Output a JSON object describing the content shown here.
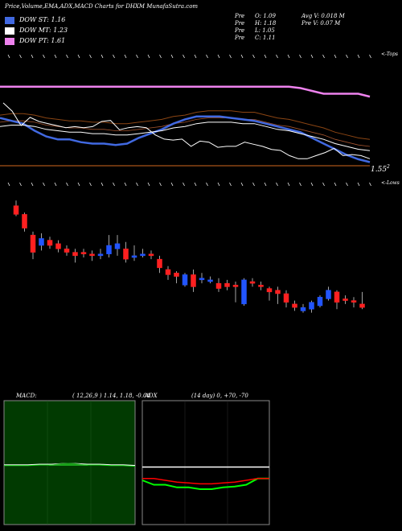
{
  "header": {
    "title": "Price,Volume,EMA,ADX,MACD Charts for DHXM MunafaSutra.com",
    "stats": [
      {
        "label": "Pre",
        "value": "O: 1.09"
      },
      {
        "label": "Pre",
        "value": "H: 1.18"
      },
      {
        "label": "Pre",
        "value": "L: 1.05"
      },
      {
        "label": "Pre",
        "value": "C: 1.11"
      }
    ],
    "avg_volume": "Avg V: 0.018 M",
    "pre_volume": "Pre  V: 0.07 M"
  },
  "legend": [
    {
      "label": "DOW ST: 1.16",
      "color": "#4169e1"
    },
    {
      "label": "DOW MT: 1.23",
      "color": "#ffffff"
    },
    {
      "label": "DOW PT: 1.61",
      "color": "#ee82ee"
    }
  ],
  "labels": {
    "tops": "<-Tops",
    "lows": "<-Lows",
    "price_label": "1.55",
    "price_sup": "2"
  },
  "macd": {
    "title": "MACD:",
    "params": "( 12,26,9 ) 1.14, 1.18, -0.04"
  },
  "adx": {
    "title": "ADX",
    "params": "(14  day) 0, +70, -70"
  },
  "chart_data": [
    {
      "type": "line",
      "title": "Price,Volume,EMA,ADX,MACD Charts for DHXM MunafaSutra.com",
      "series": [
        {
          "name": "DOW ST: 1.16",
          "color": "#4169e1",
          "values": [
            1.78,
            1.76,
            1.74,
            1.69,
            1.65,
            1.63,
            1.63,
            1.61,
            1.6,
            1.6,
            1.59,
            1.6,
            1.64,
            1.67,
            1.7,
            1.74,
            1.77,
            1.79,
            1.79,
            1.79,
            1.78,
            1.77,
            1.76,
            1.74,
            1.72,
            1.7,
            1.68,
            1.64,
            1.6,
            1.56,
            1.52,
            1.49,
            1.47
          ]
        },
        {
          "name": "DOW MT: 1.23",
          "color": "#ffffff",
          "values": [
            1.72,
            1.73,
            1.73,
            1.72,
            1.7,
            1.69,
            1.68,
            1.68,
            1.67,
            1.67,
            1.66,
            1.66,
            1.67,
            1.68,
            1.69,
            1.71,
            1.72,
            1.74,
            1.75,
            1.75,
            1.75,
            1.74,
            1.74,
            1.72,
            1.7,
            1.69,
            1.67,
            1.65,
            1.63,
            1.6,
            1.58,
            1.56,
            1.55
          ]
        },
        {
          "name": "DOW PT: 1.61",
          "color": "#ee82ee",
          "values": [
            2.0,
            2.0,
            2.0,
            2.0,
            2.0,
            2.0,
            2.0,
            2.0,
            2.0,
            2.0,
            2.0,
            2.0,
            2.0,
            2.0,
            2.0,
            2.0,
            2.0,
            2.0,
            2.0,
            2.0,
            2.0,
            2.0,
            2.0,
            2.0,
            2.0,
            2.0,
            1.99,
            1.97,
            1.95,
            1.95,
            1.95,
            1.95,
            1.93
          ]
        }
      ],
      "ylim": [
        1.45,
        2.1
      ]
    },
    {
      "type": "candlestick",
      "series": [
        {
          "values": [
            {
              "o": 2.05,
              "c": 2.0,
              "h": 2.08,
              "l": 1.99
            },
            {
              "o": 2.0,
              "c": 1.92,
              "h": 2.01,
              "l": 1.9
            },
            {
              "o": 1.88,
              "c": 1.78,
              "h": 1.9,
              "l": 1.74
            },
            {
              "o": 1.82,
              "c": 1.86,
              "h": 1.89,
              "l": 1.79
            },
            {
              "o": 1.85,
              "c": 1.82,
              "h": 1.87,
              "l": 1.8
            },
            {
              "o": 1.83,
              "c": 1.8,
              "h": 1.85,
              "l": 1.78
            },
            {
              "o": 1.8,
              "c": 1.78,
              "h": 1.82,
              "l": 1.76
            },
            {
              "o": 1.78,
              "c": 1.76,
              "h": 1.8,
              "l": 1.72
            },
            {
              "o": 1.78,
              "c": 1.77,
              "h": 1.8,
              "l": 1.75
            },
            {
              "o": 1.77,
              "c": 1.76,
              "h": 1.79,
              "l": 1.73
            },
            {
              "o": 1.76,
              "c": 1.77,
              "h": 1.8,
              "l": 1.74
            },
            {
              "o": 1.77,
              "c": 1.82,
              "h": 1.88,
              "l": 1.75
            },
            {
              "o": 1.8,
              "c": 1.83,
              "h": 1.88,
              "l": 1.76
            },
            {
              "o": 1.8,
              "c": 1.74,
              "h": 1.84,
              "l": 1.72
            },
            {
              "o": 1.75,
              "c": 1.76,
              "h": 1.82,
              "l": 1.73
            },
            {
              "o": 1.76,
              "c": 1.77,
              "h": 1.8,
              "l": 1.75
            },
            {
              "o": 1.77,
              "c": 1.76,
              "h": 1.79,
              "l": 1.74
            },
            {
              "o": 1.74,
              "c": 1.69,
              "h": 1.76,
              "l": 1.66
            },
            {
              "o": 1.68,
              "c": 1.65,
              "h": 1.7,
              "l": 1.62
            },
            {
              "o": 1.66,
              "c": 1.64,
              "h": 1.67,
              "l": 1.6
            },
            {
              "o": 1.59,
              "c": 1.65,
              "h": 1.66,
              "l": 1.58
            },
            {
              "o": 1.65,
              "c": 1.58,
              "h": 1.68,
              "l": 1.55
            },
            {
              "o": 1.62,
              "c": 1.63,
              "h": 1.66,
              "l": 1.6
            },
            {
              "o": 1.61,
              "c": 1.62,
              "h": 1.64,
              "l": 1.6
            },
            {
              "o": 1.6,
              "c": 1.57,
              "h": 1.63,
              "l": 1.55
            },
            {
              "o": 1.6,
              "c": 1.58,
              "h": 1.62,
              "l": 1.56
            },
            {
              "o": 1.59,
              "c": 1.58,
              "h": 1.61,
              "l": 1.49
            },
            {
              "o": 1.48,
              "c": 1.62,
              "h": 1.63,
              "l": 1.47
            },
            {
              "o": 1.61,
              "c": 1.6,
              "h": 1.63,
              "l": 1.58
            },
            {
              "o": 1.59,
              "c": 1.58,
              "h": 1.61,
              "l": 1.56
            },
            {
              "o": 1.57,
              "c": 1.55,
              "h": 1.58,
              "l": 1.5
            },
            {
              "o": 1.56,
              "c": 1.54,
              "h": 1.58,
              "l": 1.48
            },
            {
              "o": 1.54,
              "c": 1.49,
              "h": 1.56,
              "l": 1.46
            },
            {
              "o": 1.48,
              "c": 1.46,
              "h": 1.5,
              "l": 1.44
            },
            {
              "o": 1.44,
              "c": 1.46,
              "h": 1.48,
              "l": 1.43
            },
            {
              "o": 1.45,
              "c": 1.49,
              "h": 1.5,
              "l": 1.43
            },
            {
              "o": 1.47,
              "c": 1.52,
              "h": 1.53,
              "l": 1.46
            },
            {
              "o": 1.51,
              "c": 1.56,
              "h": 1.58,
              "l": 1.5
            },
            {
              "o": 1.55,
              "c": 1.49,
              "h": 1.56,
              "l": 1.45
            },
            {
              "o": 1.51,
              "c": 1.5,
              "h": 1.53,
              "l": 1.48
            },
            {
              "o": 1.5,
              "c": 1.49,
              "h": 1.52,
              "l": 1.46
            },
            {
              "o": 1.48,
              "c": 1.46,
              "h": 1.55,
              "l": 1.45
            }
          ]
        }
      ]
    },
    {
      "type": "line",
      "title": "MACD:",
      "series": [
        {
          "name": "MACD",
          "values": [
            0.0,
            0.0,
            0.0,
            0.01,
            0.01,
            0.02,
            0.02,
            0.01,
            0.01,
            0.0,
            0.0,
            -0.01
          ]
        }
      ],
      "ylim": [
        -1,
        1
      ]
    },
    {
      "type": "line",
      "title": "ADX",
      "series": [
        {
          "name": "ADX",
          "color": "#ffffff",
          "values": [
            15,
            15,
            15,
            15,
            15,
            15,
            15,
            15,
            15,
            15,
            15,
            15
          ]
        },
        {
          "name": "+DI",
          "color": "#00ff00",
          "values": [
            0,
            -5,
            -5,
            -8,
            -8,
            -10,
            -10,
            -8,
            -7,
            -5,
            2,
            2
          ]
        },
        {
          "name": "-DI",
          "color": "#ff0000",
          "values": [
            2,
            2,
            0,
            -2,
            -3,
            -4,
            -4,
            -3,
            -2,
            0,
            2,
            2
          ]
        }
      ],
      "ylim": [
        -70,
        70
      ]
    }
  ]
}
